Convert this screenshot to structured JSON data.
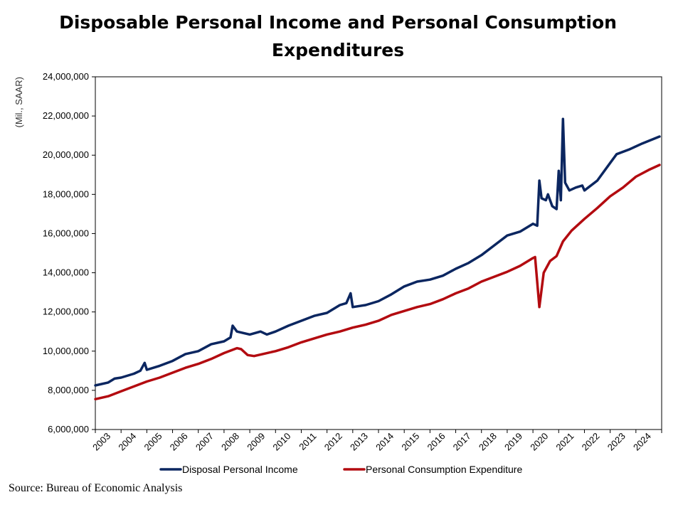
{
  "chart_data": {
    "type": "line",
    "title": "Disposable Personal Income and Personal Consumption Expenditures",
    "xlabel": "",
    "ylabel": "(Mil., SAAR)",
    "ylim": [
      6000000,
      24000000
    ],
    "xlim": [
      "2003-01",
      "2024-12"
    ],
    "y_ticks": [
      "6,000,000",
      "8,000,000",
      "10,000,000",
      "12,000,000",
      "14,000,000",
      "16,000,000",
      "18,000,000",
      "20,000,000",
      "22,000,000",
      "24,000,000"
    ],
    "x_ticks": [
      "2003",
      "2004",
      "2005",
      "2006",
      "2007",
      "2008",
      "2009",
      "2010",
      "2011",
      "2012",
      "2013",
      "2014",
      "2015",
      "2016",
      "2017",
      "2018",
      "2019",
      "2020",
      "2021",
      "2022",
      "2023",
      "2024"
    ],
    "grid": "horizontal",
    "legend_position": "bottom",
    "series": [
      {
        "name": "Disposal Personal Income",
        "color": "#0b2660",
        "points": [
          [
            "2003-01",
            8250000
          ],
          [
            "2003-07",
            8400000
          ],
          [
            "2003-10",
            8600000
          ],
          [
            "2004-01",
            8650000
          ],
          [
            "2004-07",
            8850000
          ],
          [
            "2004-10",
            9000000
          ],
          [
            "2004-12",
            9400000
          ],
          [
            "2005-01",
            9050000
          ],
          [
            "2005-07",
            9250000
          ],
          [
            "2006-01",
            9500000
          ],
          [
            "2006-07",
            9850000
          ],
          [
            "2007-01",
            10000000
          ],
          [
            "2007-07",
            10350000
          ],
          [
            "2008-01",
            10500000
          ],
          [
            "2008-04",
            10700000
          ],
          [
            "2008-05",
            11300000
          ],
          [
            "2008-07",
            11000000
          ],
          [
            "2009-01",
            10850000
          ],
          [
            "2009-06",
            11000000
          ],
          [
            "2009-09",
            10850000
          ],
          [
            "2010-01",
            11000000
          ],
          [
            "2010-07",
            11300000
          ],
          [
            "2011-01",
            11550000
          ],
          [
            "2011-07",
            11800000
          ],
          [
            "2012-01",
            11950000
          ],
          [
            "2012-07",
            12350000
          ],
          [
            "2012-10",
            12450000
          ],
          [
            "2012-12",
            12950000
          ],
          [
            "2013-01",
            12250000
          ],
          [
            "2013-07",
            12350000
          ],
          [
            "2014-01",
            12550000
          ],
          [
            "2014-07",
            12900000
          ],
          [
            "2015-01",
            13300000
          ],
          [
            "2015-07",
            13550000
          ],
          [
            "2016-01",
            13650000
          ],
          [
            "2016-07",
            13850000
          ],
          [
            "2017-01",
            14200000
          ],
          [
            "2017-07",
            14500000
          ],
          [
            "2018-01",
            14900000
          ],
          [
            "2018-07",
            15400000
          ],
          [
            "2019-01",
            15900000
          ],
          [
            "2019-07",
            16100000
          ],
          [
            "2020-01",
            16500000
          ],
          [
            "2020-03",
            16400000
          ],
          [
            "2020-04",
            18700000
          ],
          [
            "2020-05",
            17800000
          ],
          [
            "2020-07",
            17700000
          ],
          [
            "2020-08",
            18000000
          ],
          [
            "2020-10",
            17400000
          ],
          [
            "2020-12",
            17250000
          ],
          [
            "2021-01",
            19200000
          ],
          [
            "2021-02",
            17700000
          ],
          [
            "2021-03",
            21850000
          ],
          [
            "2021-04",
            18600000
          ],
          [
            "2021-06",
            18200000
          ],
          [
            "2021-09",
            18350000
          ],
          [
            "2021-12",
            18450000
          ],
          [
            "2022-01",
            18200000
          ],
          [
            "2022-07",
            18700000
          ],
          [
            "2023-01",
            19600000
          ],
          [
            "2023-04",
            20050000
          ],
          [
            "2023-10",
            20300000
          ],
          [
            "2024-04",
            20600000
          ],
          [
            "2024-12",
            20950000
          ]
        ]
      },
      {
        "name": "Personal Consumption Expenditure",
        "color": "#b30b10",
        "points": [
          [
            "2003-01",
            7550000
          ],
          [
            "2003-07",
            7700000
          ],
          [
            "2004-01",
            7950000
          ],
          [
            "2004-07",
            8200000
          ],
          [
            "2005-01",
            8450000
          ],
          [
            "2005-07",
            8650000
          ],
          [
            "2006-01",
            8900000
          ],
          [
            "2006-07",
            9150000
          ],
          [
            "2007-01",
            9350000
          ],
          [
            "2007-07",
            9600000
          ],
          [
            "2008-01",
            9900000
          ],
          [
            "2008-07",
            10150000
          ],
          [
            "2008-09",
            10100000
          ],
          [
            "2008-12",
            9800000
          ],
          [
            "2009-03",
            9750000
          ],
          [
            "2009-07",
            9850000
          ],
          [
            "2010-01",
            10000000
          ],
          [
            "2010-07",
            10200000
          ],
          [
            "2011-01",
            10450000
          ],
          [
            "2011-07",
            10650000
          ],
          [
            "2012-01",
            10850000
          ],
          [
            "2012-07",
            11000000
          ],
          [
            "2013-01",
            11200000
          ],
          [
            "2013-07",
            11350000
          ],
          [
            "2014-01",
            11550000
          ],
          [
            "2014-07",
            11850000
          ],
          [
            "2015-01",
            12050000
          ],
          [
            "2015-07",
            12250000
          ],
          [
            "2016-01",
            12400000
          ],
          [
            "2016-07",
            12650000
          ],
          [
            "2017-01",
            12950000
          ],
          [
            "2017-07",
            13200000
          ],
          [
            "2018-01",
            13550000
          ],
          [
            "2018-07",
            13800000
          ],
          [
            "2019-01",
            14050000
          ],
          [
            "2019-07",
            14350000
          ],
          [
            "2020-01",
            14750000
          ],
          [
            "2020-02",
            14800000
          ],
          [
            "2020-04",
            12250000
          ],
          [
            "2020-06",
            14000000
          ],
          [
            "2020-09",
            14600000
          ],
          [
            "2020-12",
            14850000
          ],
          [
            "2021-03",
            15600000
          ],
          [
            "2021-07",
            16150000
          ],
          [
            "2022-01",
            16750000
          ],
          [
            "2022-07",
            17300000
          ],
          [
            "2023-01",
            17900000
          ],
          [
            "2023-07",
            18350000
          ],
          [
            "2024-01",
            18900000
          ],
          [
            "2024-07",
            19250000
          ],
          [
            "2024-12",
            19500000
          ]
        ]
      }
    ]
  },
  "source": "Source: Bureau of Economic Analysis"
}
